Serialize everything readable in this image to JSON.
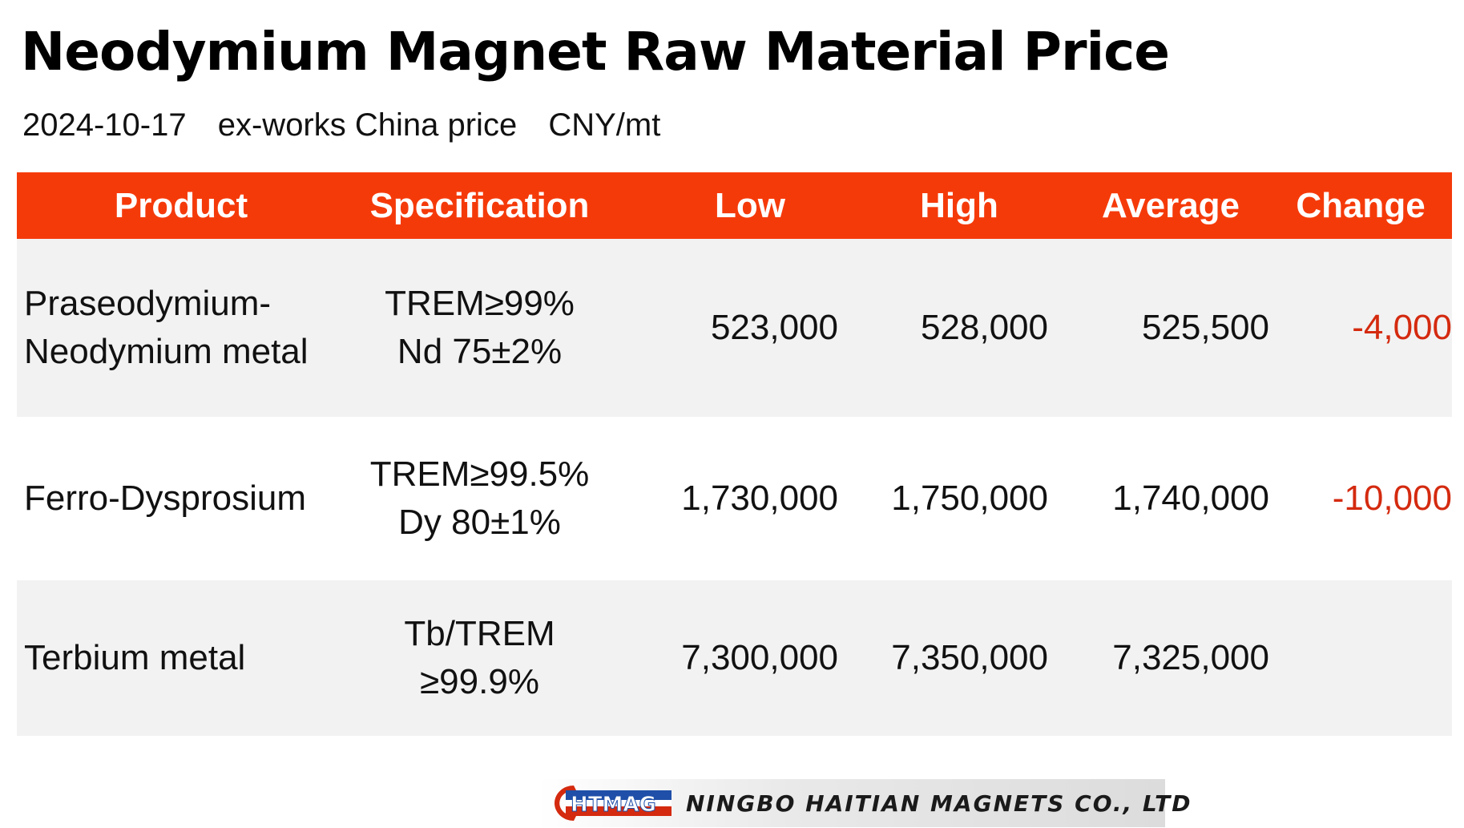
{
  "title": "Neodymium Magnet Raw Material Price",
  "subtitle": {
    "date": "2024-10-17",
    "basis": "ex-works China price",
    "unit": "CNY/mt"
  },
  "table": {
    "headers": [
      "Product",
      "Specification",
      "Low",
      "High",
      "Average",
      "Change"
    ],
    "rows": [
      {
        "product": [
          "Praseodymium-",
          "Neodymium metal"
        ],
        "spec": [
          "TREM≥99%",
          "Nd 75±2%"
        ],
        "low": "523,000",
        "high": "528,000",
        "average": "525,500",
        "change": "-4,000"
      },
      {
        "product": [
          "Ferro-Dysprosium"
        ],
        "spec": [
          "TREM≥99.5%",
          "Dy 80±1%"
        ],
        "low": "1,730,000",
        "high": "1,750,000",
        "average": "1,740,000",
        "change": "-10,000"
      },
      {
        "product": [
          "Terbium metal"
        ],
        "spec": [
          "Tb/TREM",
          "≥99.9%"
        ],
        "low": "7,300,000",
        "high": "7,350,000",
        "average": "7,325,000",
        "change": ""
      }
    ]
  },
  "footer": {
    "logo_letters": "HTMAG",
    "company": "NINGBO HAITIAN MAGNETS CO., LTD"
  },
  "colors": {
    "header_bg": "#f53a0a",
    "negative_change": "#d42a0f",
    "row_shade": "#f2f2f2"
  }
}
